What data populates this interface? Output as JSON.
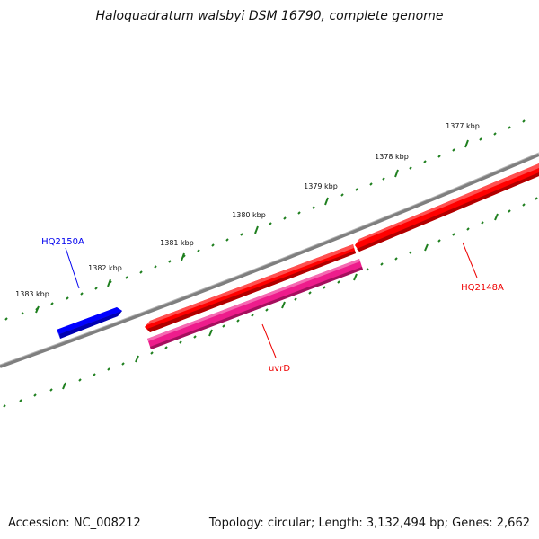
{
  "title": "Haloquadratum walsbyi DSM 16790, complete genome",
  "footer": {
    "accession": "Accession: NC_008212",
    "summary": "Topology: circular; Length: 3,132,494 bp; Genes: 2,662"
  },
  "ticks": [
    "1377 kbp",
    "1378 kbp",
    "1379 kbp",
    "1380 kbp",
    "1381 kbp",
    "1382 kbp",
    "1383 kbp"
  ],
  "genes": [
    {
      "label": "HQ2150A",
      "color": "#0000ee"
    },
    {
      "label": "HQ2148A",
      "color": "#ee0000"
    },
    {
      "label": "uvrD",
      "color": "#ee0000"
    }
  ],
  "colors": {
    "backbone": "#7f7f7f",
    "tick": "#1e7f1e",
    "forward_gene": "#ff0000",
    "reverse_gene": "#ee1c8c",
    "blue_gene": "#0000ff"
  }
}
